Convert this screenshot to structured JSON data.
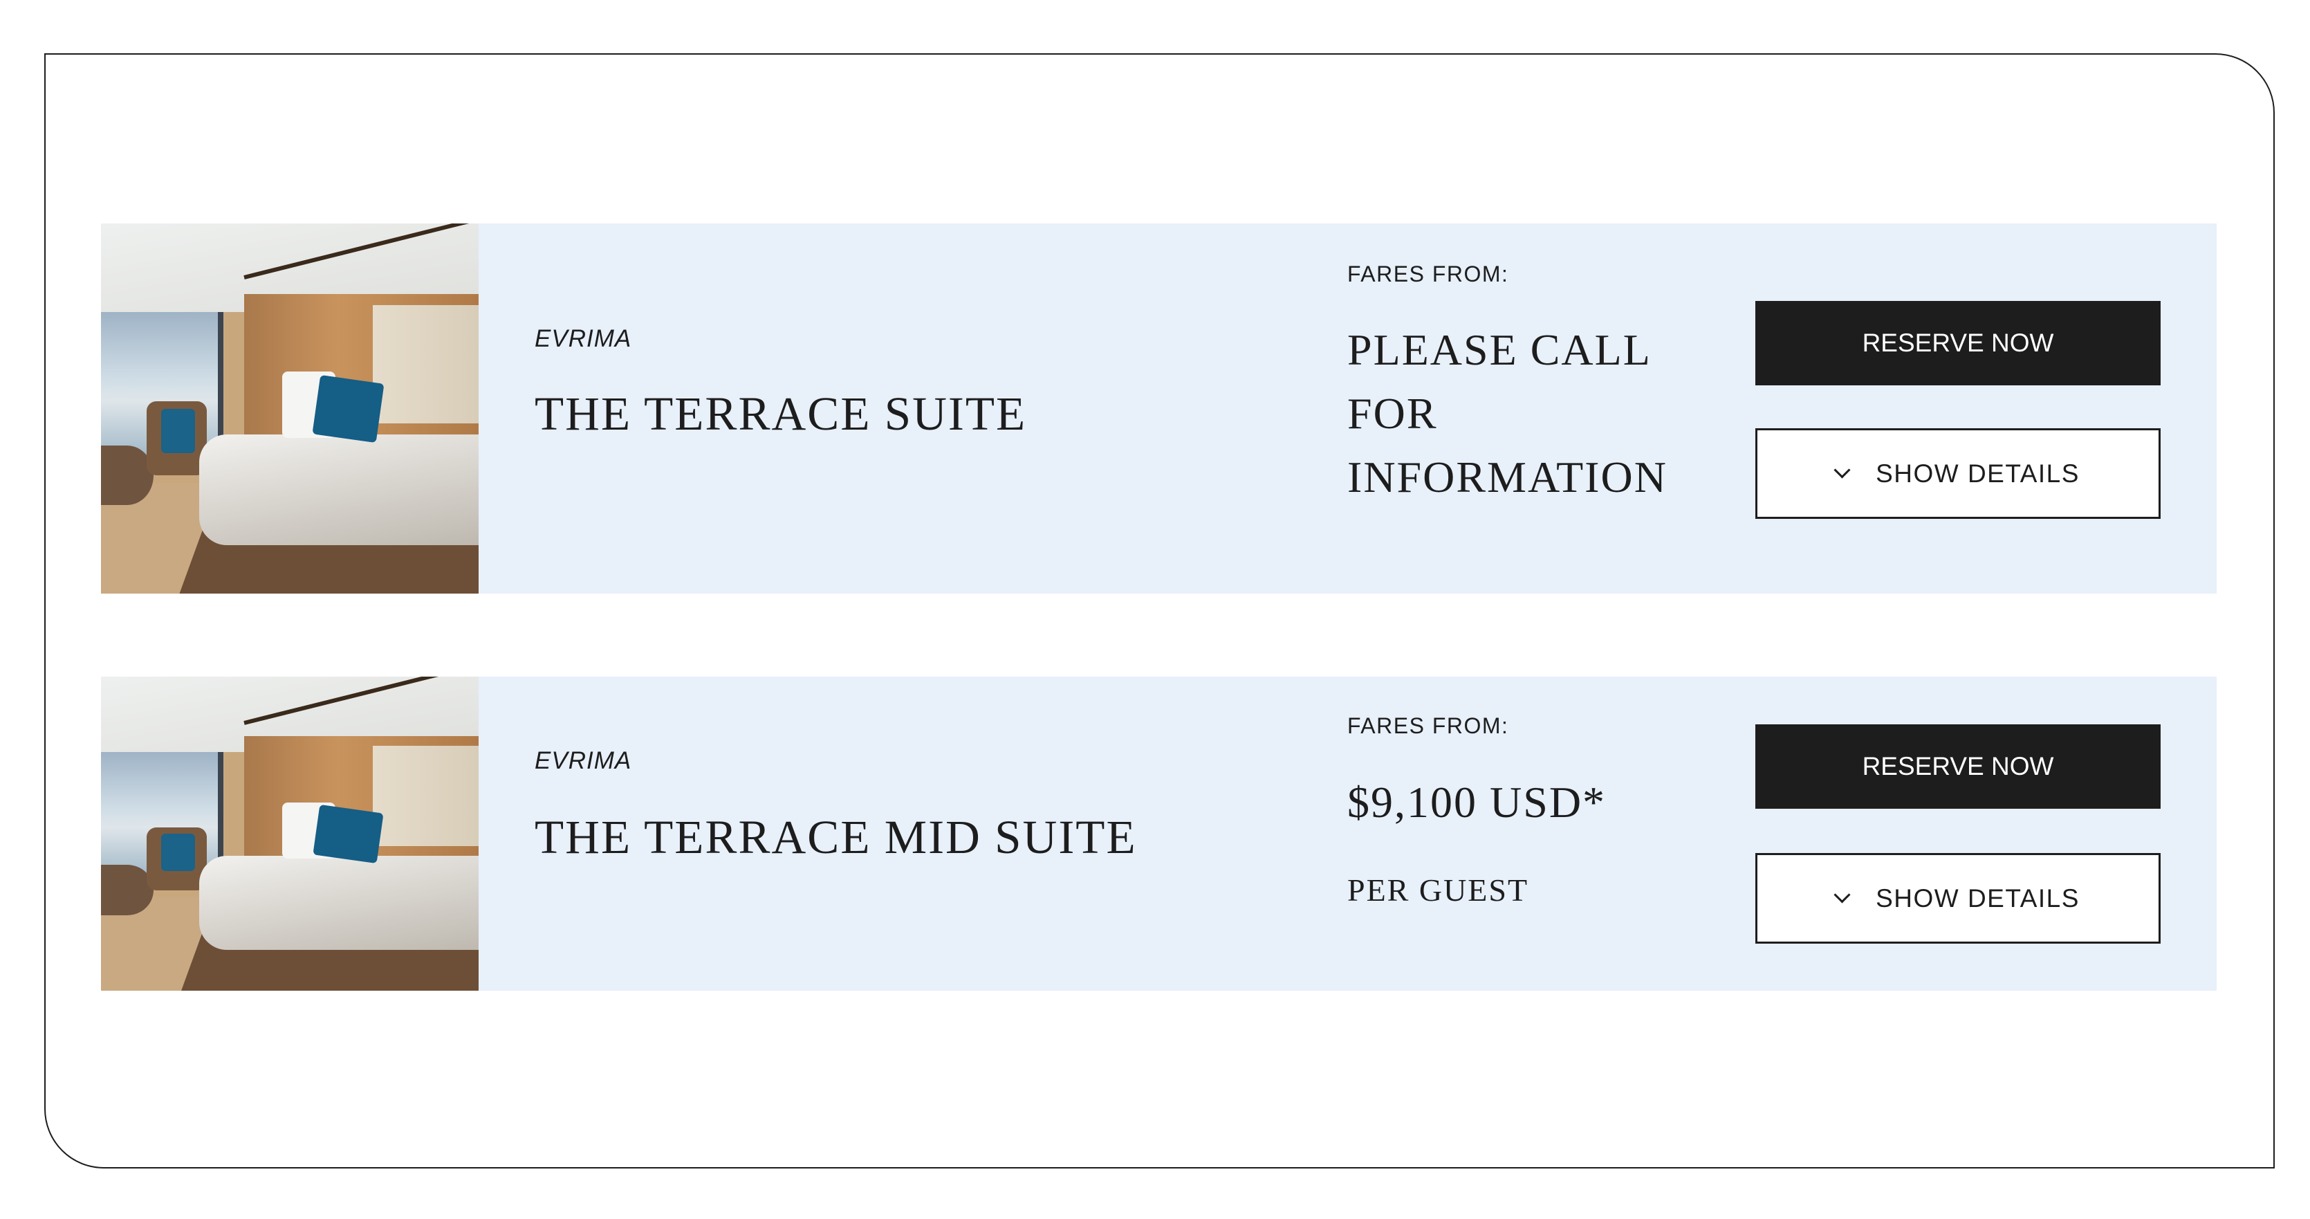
{
  "suites": [
    {
      "brand": "EVRIMA",
      "name": "THE TERRACE SUITE",
      "fares_label": "FARES FROM:",
      "price_lines": [
        "PLEASE CALL",
        "FOR",
        "INFORMATION"
      ],
      "reserve_label": "RESERVE NOW",
      "details_label": "SHOW DETAILS",
      "details_icon": "chevron-down-icon"
    },
    {
      "brand": "EVRIMA",
      "name": "THE TERRACE MID SUITE",
      "fares_label": "FARES FROM:",
      "price": "$9,100 USD*",
      "price_unit": "PER GUEST",
      "reserve_label": "RESERVE NOW",
      "details_label": "SHOW DETAILS",
      "details_icon": "chevron-down-icon"
    }
  ],
  "colors": {
    "card_bg": "#e8f0fa",
    "button_dark": "#1d1d1d",
    "text": "#1d1d1d"
  }
}
